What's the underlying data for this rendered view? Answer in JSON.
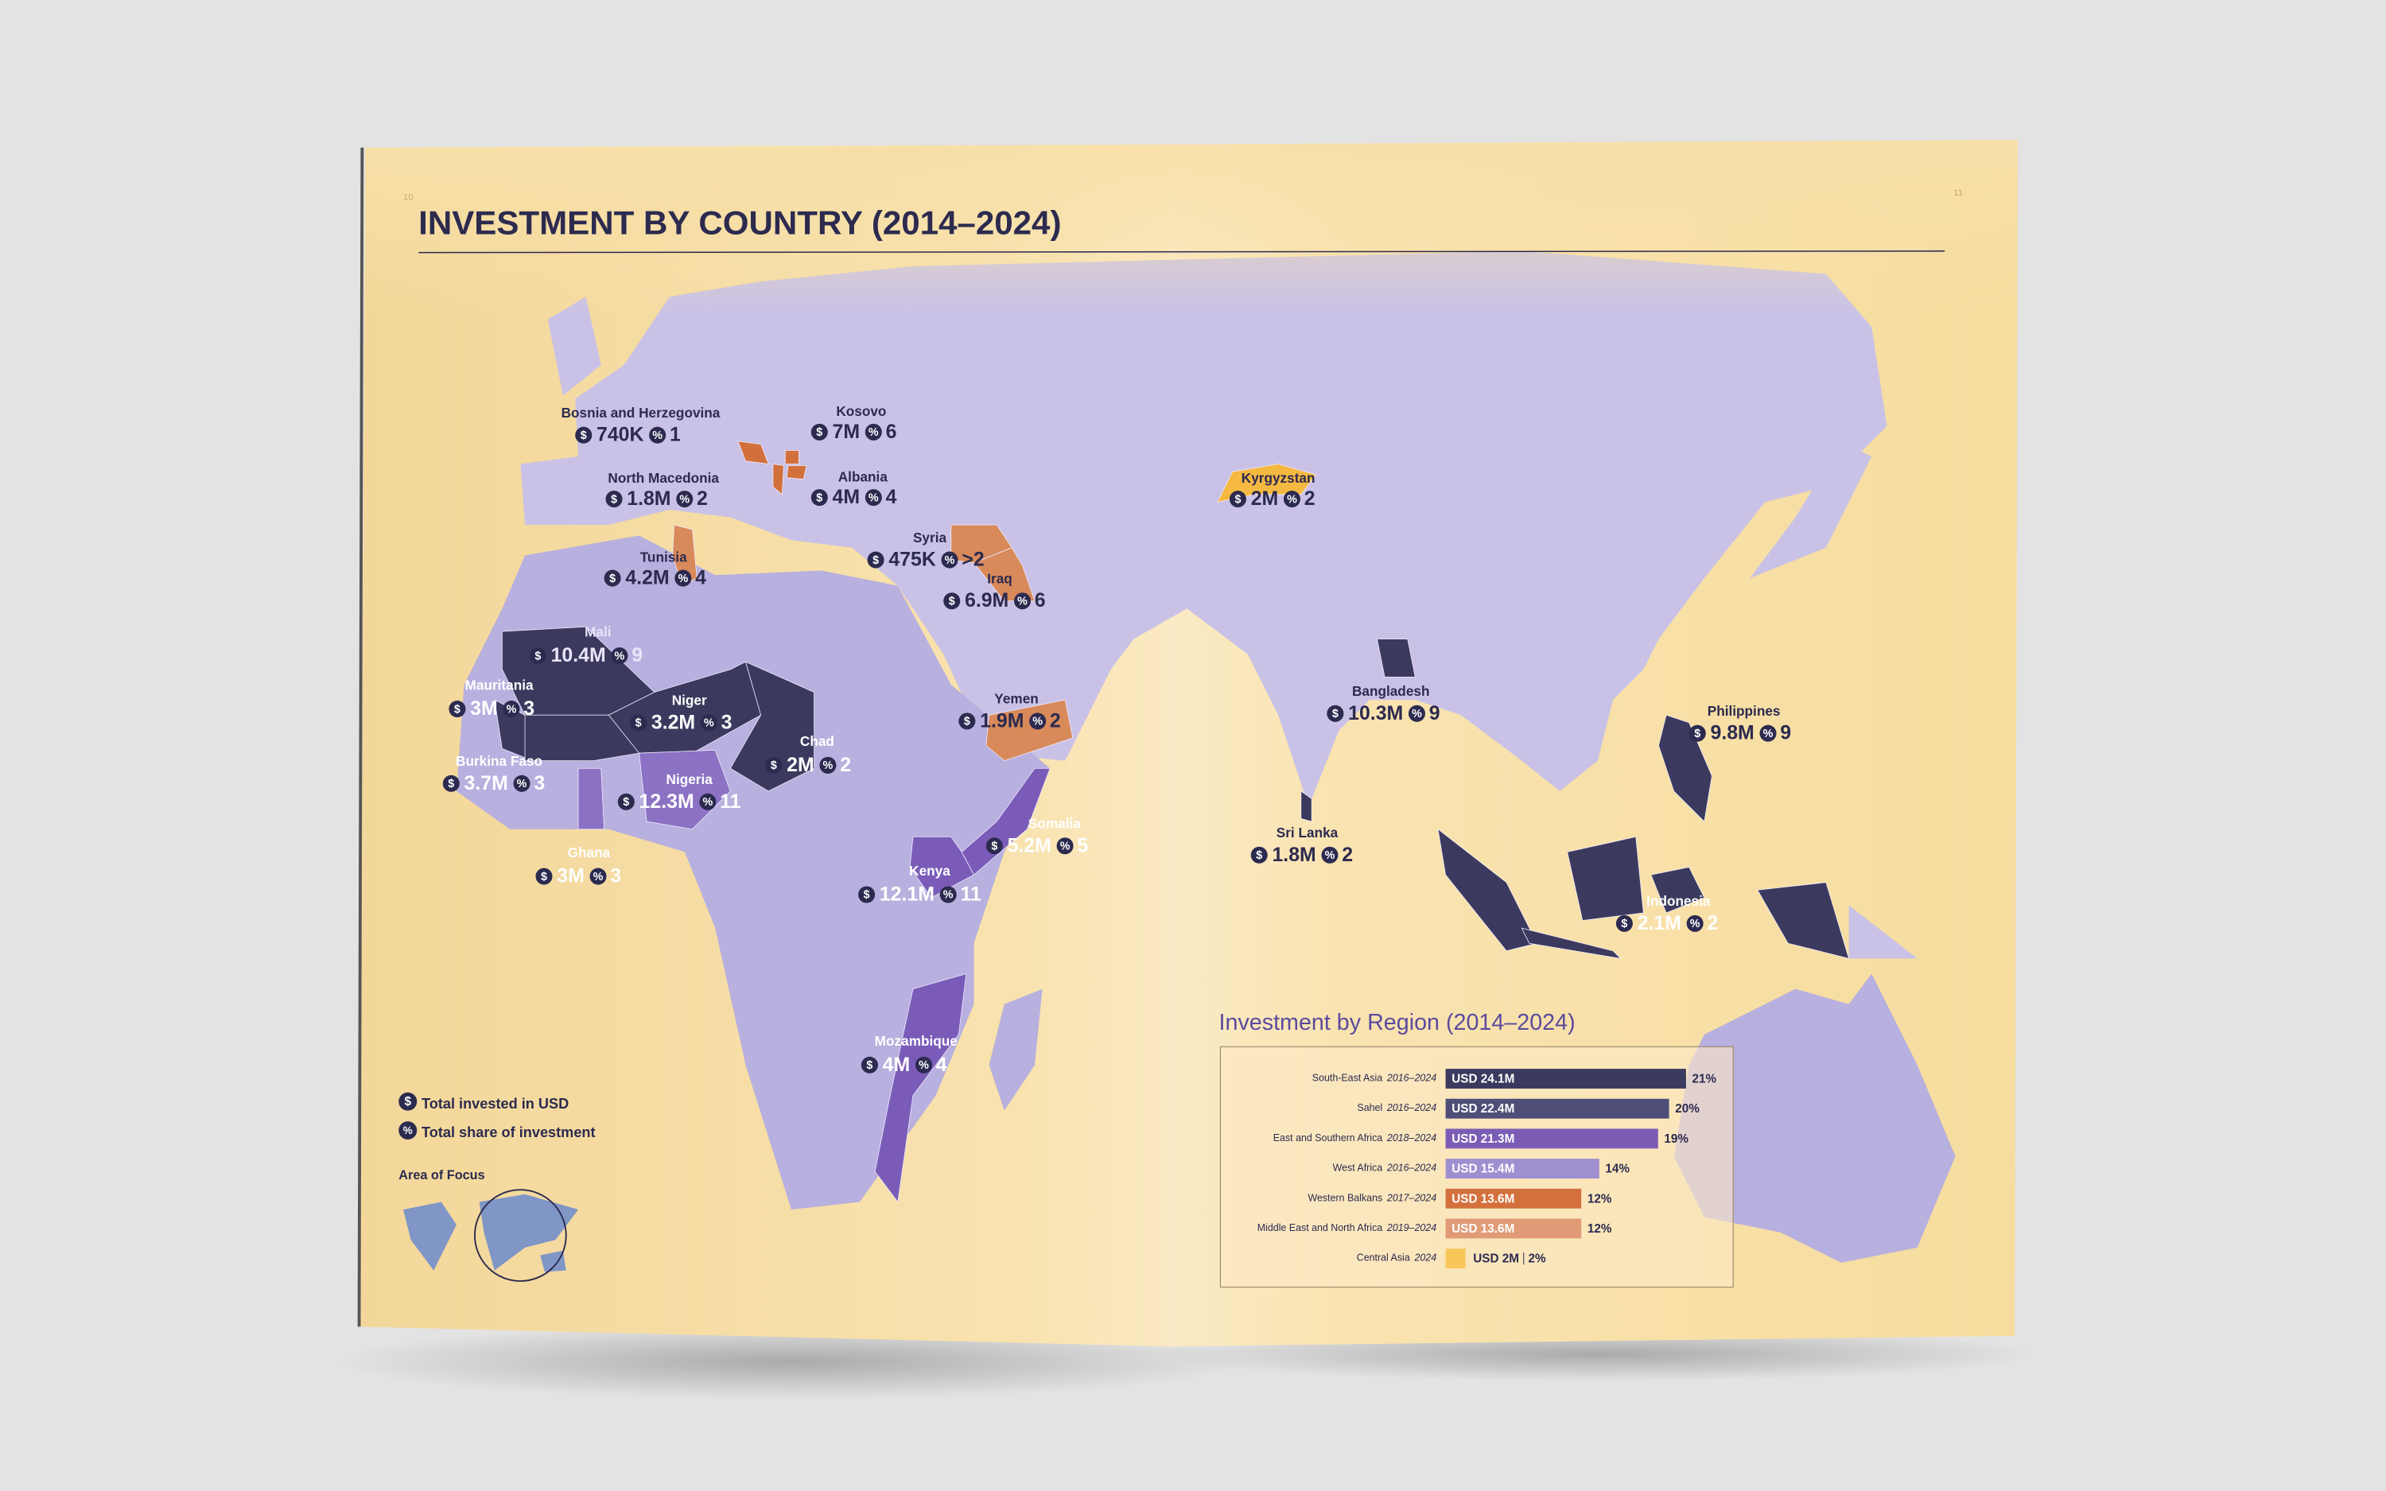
{
  "page_numbers": [
    "10",
    "11"
  ],
  "title": "INVESTMENT BY COUNTRY (2014–2024)",
  "icons": {
    "amount": "$",
    "share": "%"
  },
  "countries": [
    {
      "name": "Bosnia and Herzegovina",
      "amount": "740K",
      "share": "1",
      "color": "#d2703c"
    },
    {
      "name": "Kosovo",
      "amount": "7M",
      "share": "6",
      "color": "#d2703c"
    },
    {
      "name": "North Macedonia",
      "amount": "1.8M",
      "share": "2",
      "color": "#d2703c"
    },
    {
      "name": "Albania",
      "amount": "4M",
      "share": "4",
      "color": "#d2703c"
    },
    {
      "name": "Tunisia",
      "amount": "4.2M",
      "share": "4",
      "color": "#d88a5b"
    },
    {
      "name": "Syria",
      "amount": "475K",
      "share": ">2",
      "color": "#d88a5b"
    },
    {
      "name": "Iraq",
      "amount": "6.9M",
      "share": "6",
      "color": "#d88a5b"
    },
    {
      "name": "Mali",
      "amount": "10.4M",
      "share": "9",
      "color": "#3b3a5e",
      "label_color": "#e9e4f7"
    },
    {
      "name": "Mauritania",
      "amount": "3M",
      "share": "3",
      "color": "#3b3a5e",
      "label_color": "#ffffff"
    },
    {
      "name": "Niger",
      "amount": "3.2M",
      "share": "3",
      "color": "#3b3a5e",
      "label_color": "#ffffff"
    },
    {
      "name": "Chad",
      "amount": "2M",
      "share": "2",
      "color": "#3b3a5e",
      "label_color": "#ffffff"
    },
    {
      "name": "Burkina Faso",
      "amount": "3.7M",
      "share": "3",
      "color": "#3b3a5e",
      "label_color": "#ffffff"
    },
    {
      "name": "Nigeria",
      "amount": "12.3M",
      "share": "11",
      "color": "#8b72c4",
      "label_color": "#ffffff"
    },
    {
      "name": "Ghana",
      "amount": "3M",
      "share": "3",
      "color": "#8b72c4",
      "label_color": "#ffffff"
    },
    {
      "name": "Yemen",
      "amount": "1.9M",
      "share": "2",
      "color": "#d88a5b"
    },
    {
      "name": "Somalia",
      "amount": "5.2M",
      "share": "5",
      "color": "#7a5cb8",
      "label_color": "#ffffff"
    },
    {
      "name": "Kenya",
      "amount": "12.1M",
      "share": "11",
      "color": "#7a5cb8",
      "label_color": "#ffffff"
    },
    {
      "name": "Mozambique",
      "amount": "4M",
      "share": "4",
      "color": "#7a5cb8",
      "label_color": "#ffffff"
    },
    {
      "name": "Kyrgyzstan",
      "amount": "2M",
      "share": "2",
      "color": "#f5b942"
    },
    {
      "name": "Bangladesh",
      "amount": "10.3M",
      "share": "9",
      "color": "#3b3a5e"
    },
    {
      "name": "Sri Lanka",
      "amount": "1.8M",
      "share": "2",
      "color": "#3b3a5e"
    },
    {
      "name": "Philippines",
      "amount": "9.8M",
      "share": "9",
      "color": "#3b3a5e"
    },
    {
      "name": "Indonesia",
      "amount": "2.1M",
      "share": "2",
      "color": "#3b3a5e",
      "label_color": "#ffffff"
    }
  ],
  "legend": {
    "amount": "Total invested in USD",
    "share": "Total share of investment",
    "area": "Area of Focus"
  },
  "chart_data": {
    "type": "bar",
    "title": "Investment by Region (2014–2024)",
    "categories": [
      "South-East Asia",
      "Sahel",
      "East and Southern Africa",
      "West Africa",
      "Western Balkans",
      "Middle East and North Africa",
      "Central Asia"
    ],
    "periods": [
      "2016–2024",
      "2016–2024",
      "2018–2024",
      "2016–2024",
      "2017–2024",
      "2019–2024",
      "2024"
    ],
    "values": [
      24.1,
      22.4,
      21.3,
      15.4,
      13.6,
      13.6,
      2
    ],
    "value_labels": [
      "USD 24.1M",
      "USD 22.4M",
      "USD 21.3M",
      "USD 15.4M",
      "USD 13.6M",
      "USD 13.6M",
      "USD 2M"
    ],
    "shares": [
      21,
      20,
      19,
      14,
      12,
      12,
      2
    ],
    "share_labels": [
      "21%",
      "20%",
      "19%",
      "14%",
      "12%",
      "12%",
      "2%"
    ],
    "colors": [
      "#3b3a5e",
      "#4f4e78",
      "#7b5cb5",
      "#a08fd0",
      "#d4703c",
      "#e09a75",
      "#f8c75a"
    ]
  }
}
